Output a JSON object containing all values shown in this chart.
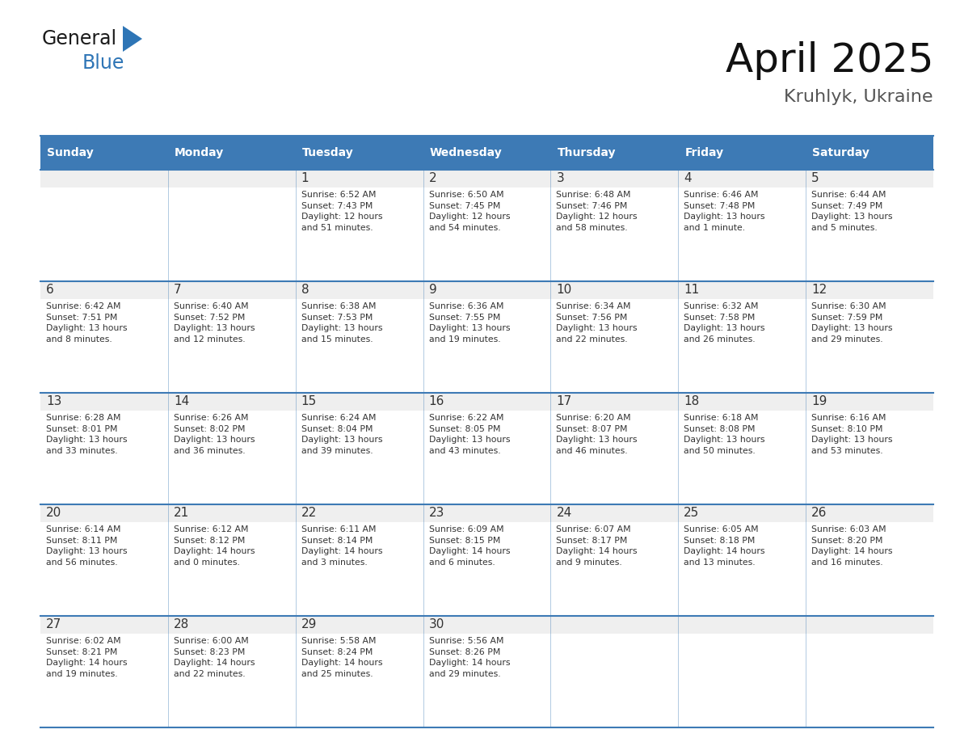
{
  "title": "April 2025",
  "subtitle": "Kruhlyk, Ukraine",
  "days_of_week": [
    "Sunday",
    "Monday",
    "Tuesday",
    "Wednesday",
    "Thursday",
    "Friday",
    "Saturday"
  ],
  "header_bg": "#3D7AB5",
  "header_text": "#FFFFFF",
  "day_num_bg": "#EFEFEF",
  "cell_bg": "#FFFFFF",
  "border_color": "#3D7AB5",
  "text_color": "#333333",
  "weeks": [
    {
      "days": [
        {
          "day": "",
          "info": ""
        },
        {
          "day": "",
          "info": ""
        },
        {
          "day": "1",
          "info": "Sunrise: 6:52 AM\nSunset: 7:43 PM\nDaylight: 12 hours\nand 51 minutes."
        },
        {
          "day": "2",
          "info": "Sunrise: 6:50 AM\nSunset: 7:45 PM\nDaylight: 12 hours\nand 54 minutes."
        },
        {
          "day": "3",
          "info": "Sunrise: 6:48 AM\nSunset: 7:46 PM\nDaylight: 12 hours\nand 58 minutes."
        },
        {
          "day": "4",
          "info": "Sunrise: 6:46 AM\nSunset: 7:48 PM\nDaylight: 13 hours\nand 1 minute."
        },
        {
          "day": "5",
          "info": "Sunrise: 6:44 AM\nSunset: 7:49 PM\nDaylight: 13 hours\nand 5 minutes."
        }
      ]
    },
    {
      "days": [
        {
          "day": "6",
          "info": "Sunrise: 6:42 AM\nSunset: 7:51 PM\nDaylight: 13 hours\nand 8 minutes."
        },
        {
          "day": "7",
          "info": "Sunrise: 6:40 AM\nSunset: 7:52 PM\nDaylight: 13 hours\nand 12 minutes."
        },
        {
          "day": "8",
          "info": "Sunrise: 6:38 AM\nSunset: 7:53 PM\nDaylight: 13 hours\nand 15 minutes."
        },
        {
          "day": "9",
          "info": "Sunrise: 6:36 AM\nSunset: 7:55 PM\nDaylight: 13 hours\nand 19 minutes."
        },
        {
          "day": "10",
          "info": "Sunrise: 6:34 AM\nSunset: 7:56 PM\nDaylight: 13 hours\nand 22 minutes."
        },
        {
          "day": "11",
          "info": "Sunrise: 6:32 AM\nSunset: 7:58 PM\nDaylight: 13 hours\nand 26 minutes."
        },
        {
          "day": "12",
          "info": "Sunrise: 6:30 AM\nSunset: 7:59 PM\nDaylight: 13 hours\nand 29 minutes."
        }
      ]
    },
    {
      "days": [
        {
          "day": "13",
          "info": "Sunrise: 6:28 AM\nSunset: 8:01 PM\nDaylight: 13 hours\nand 33 minutes."
        },
        {
          "day": "14",
          "info": "Sunrise: 6:26 AM\nSunset: 8:02 PM\nDaylight: 13 hours\nand 36 minutes."
        },
        {
          "day": "15",
          "info": "Sunrise: 6:24 AM\nSunset: 8:04 PM\nDaylight: 13 hours\nand 39 minutes."
        },
        {
          "day": "16",
          "info": "Sunrise: 6:22 AM\nSunset: 8:05 PM\nDaylight: 13 hours\nand 43 minutes."
        },
        {
          "day": "17",
          "info": "Sunrise: 6:20 AM\nSunset: 8:07 PM\nDaylight: 13 hours\nand 46 minutes."
        },
        {
          "day": "18",
          "info": "Sunrise: 6:18 AM\nSunset: 8:08 PM\nDaylight: 13 hours\nand 50 minutes."
        },
        {
          "day": "19",
          "info": "Sunrise: 6:16 AM\nSunset: 8:10 PM\nDaylight: 13 hours\nand 53 minutes."
        }
      ]
    },
    {
      "days": [
        {
          "day": "20",
          "info": "Sunrise: 6:14 AM\nSunset: 8:11 PM\nDaylight: 13 hours\nand 56 minutes."
        },
        {
          "day": "21",
          "info": "Sunrise: 6:12 AM\nSunset: 8:12 PM\nDaylight: 14 hours\nand 0 minutes."
        },
        {
          "day": "22",
          "info": "Sunrise: 6:11 AM\nSunset: 8:14 PM\nDaylight: 14 hours\nand 3 minutes."
        },
        {
          "day": "23",
          "info": "Sunrise: 6:09 AM\nSunset: 8:15 PM\nDaylight: 14 hours\nand 6 minutes."
        },
        {
          "day": "24",
          "info": "Sunrise: 6:07 AM\nSunset: 8:17 PM\nDaylight: 14 hours\nand 9 minutes."
        },
        {
          "day": "25",
          "info": "Sunrise: 6:05 AM\nSunset: 8:18 PM\nDaylight: 14 hours\nand 13 minutes."
        },
        {
          "day": "26",
          "info": "Sunrise: 6:03 AM\nSunset: 8:20 PM\nDaylight: 14 hours\nand 16 minutes."
        }
      ]
    },
    {
      "days": [
        {
          "day": "27",
          "info": "Sunrise: 6:02 AM\nSunset: 8:21 PM\nDaylight: 14 hours\nand 19 minutes."
        },
        {
          "day": "28",
          "info": "Sunrise: 6:00 AM\nSunset: 8:23 PM\nDaylight: 14 hours\nand 22 minutes."
        },
        {
          "day": "29",
          "info": "Sunrise: 5:58 AM\nSunset: 8:24 PM\nDaylight: 14 hours\nand 25 minutes."
        },
        {
          "day": "30",
          "info": "Sunrise: 5:56 AM\nSunset: 8:26 PM\nDaylight: 14 hours\nand 29 minutes."
        },
        {
          "day": "",
          "info": ""
        },
        {
          "day": "",
          "info": ""
        },
        {
          "day": "",
          "info": ""
        }
      ]
    }
  ]
}
